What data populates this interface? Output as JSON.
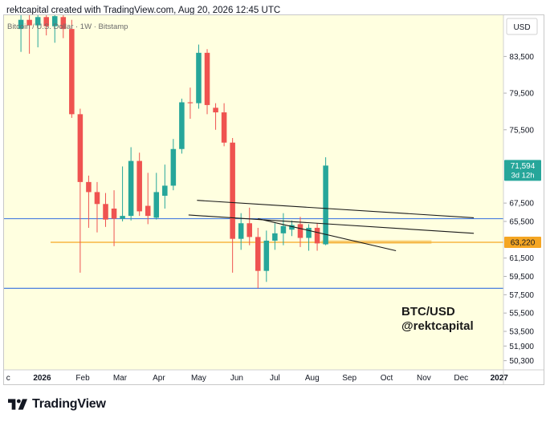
{
  "header": {
    "text": "rektcapital created with TradingView.com, Aug 20, 2026 12:45 UTC"
  },
  "legend": {
    "text": "Bitcoin / U.S. Dollar · 1W · Bitstamp"
  },
  "watermark": {
    "line1": "BTC/USD",
    "line2": "@rektcapital"
  },
  "footer": {
    "brand": "TradingView",
    "logo_icon": "tradingview-logo-icon"
  },
  "colors": {
    "background": "#ffffe0",
    "bull": "#26a69a",
    "bear": "#ef5350",
    "blue_line": "#4a7fe0",
    "orange_line": "#f5a623",
    "orange_zone": "#f7d27a",
    "trendline": "#1a1a1a",
    "price_badge_bull": "#26a69a",
    "price_badge_orange": "#f5a623"
  },
  "chart_data": {
    "type": "candlestick",
    "title": "Bitcoin / U.S. Dollar · 1W · Bitstamp",
    "currency_label": "USD",
    "y_ticks": [
      "83,500",
      "79,500",
      "75,500",
      "67,500",
      "65,500",
      "61,500",
      "59,500",
      "57,500",
      "55,500",
      "53,500",
      "51,900",
      "50,300"
    ],
    "y_tick_values": [
      83500,
      79500,
      75500,
      67500,
      65500,
      61500,
      59500,
      57500,
      55500,
      53500,
      51900,
      50300
    ],
    "ylim": [
      49300,
      88000
    ],
    "x_ticks": [
      "c",
      "2026",
      "Feb",
      "Mar",
      "Apr",
      "May",
      "Jun",
      "Jul",
      "Aug",
      "Sep",
      "Oct",
      "Nov",
      "Dec",
      "2027"
    ],
    "x_tick_weeks": [
      -1.5,
      2.5,
      7.3,
      11.7,
      16.3,
      21.0,
      25.5,
      30.0,
      34.4,
      38.8,
      43.2,
      47.6,
      52.0,
      56.5
    ],
    "xlim": [
      -2,
      57
    ],
    "price_labels": [
      {
        "value": 71594,
        "text": "71,594",
        "sub": "3d 12h",
        "kind": "bull"
      },
      {
        "value": 63220,
        "text": "63,220",
        "sub": "",
        "kind": "orange"
      }
    ],
    "horizontal_lines": [
      {
        "y": 65800,
        "kind": "blue",
        "x0": -2,
        "x1": 57
      },
      {
        "y": 58200,
        "kind": "blue",
        "x0": -2,
        "x1": 57
      },
      {
        "y": 63220,
        "kind": "orange",
        "x0": 3.5,
        "x1": 57
      }
    ],
    "orange_zone": {
      "x0": 35.5,
      "x1": 48.5,
      "y0": 63050,
      "y1": 63450
    },
    "trendlines": [
      {
        "x0": 20.8,
        "y0": 67800,
        "x1": 53.5,
        "y1": 65900
      },
      {
        "x0": 19.8,
        "y0": 66200,
        "x1": 53.5,
        "y1": 64200
      },
      {
        "x0": 28.0,
        "y0": 65800,
        "x1": 44.3,
        "y1": 62300
      }
    ],
    "candles": [
      {
        "w": 0,
        "o": 86500,
        "h": 88000,
        "l": 84000,
        "c": 87500
      },
      {
        "w": 1,
        "o": 87500,
        "h": 88000,
        "l": 83800,
        "c": 86900
      },
      {
        "w": 2,
        "o": 86900,
        "h": 88000,
        "l": 84500,
        "c": 87800
      },
      {
        "w": 3,
        "o": 87800,
        "h": 88000,
        "l": 85800,
        "c": 86800
      },
      {
        "w": 4,
        "o": 86800,
        "h": 88000,
        "l": 85000,
        "c": 87900
      },
      {
        "w": 5,
        "o": 87800,
        "h": 88000,
        "l": 85500,
        "c": 86500
      },
      {
        "w": 6,
        "o": 86500,
        "h": 87500,
        "l": 76800,
        "c": 77200
      },
      {
        "w": 7,
        "o": 77200,
        "h": 77800,
        "l": 59900,
        "c": 69800
      },
      {
        "w": 8,
        "o": 69800,
        "h": 70500,
        "l": 64800,
        "c": 68700
      },
      {
        "w": 9,
        "o": 68700,
        "h": 69800,
        "l": 64300,
        "c": 67400
      },
      {
        "w": 10,
        "o": 67400,
        "h": 68600,
        "l": 64900,
        "c": 65700
      },
      {
        "w": 11,
        "o": 66900,
        "h": 68900,
        "l": 62800,
        "c": 65800
      },
      {
        "w": 12,
        "o": 65800,
        "h": 71500,
        "l": 65500,
        "c": 66100
      },
      {
        "w": 13,
        "o": 66100,
        "h": 73600,
        "l": 65600,
        "c": 72100
      },
      {
        "w": 14,
        "o": 72100,
        "h": 73000,
        "l": 66100,
        "c": 66600
      },
      {
        "w": 15,
        "o": 67200,
        "h": 70800,
        "l": 65200,
        "c": 66100
      },
      {
        "w": 16,
        "o": 65900,
        "h": 70800,
        "l": 65700,
        "c": 68700
      },
      {
        "w": 17,
        "o": 68300,
        "h": 71700,
        "l": 66900,
        "c": 69400
      },
      {
        "w": 18,
        "o": 69400,
        "h": 74500,
        "l": 68900,
        "c": 73400
      },
      {
        "w": 19,
        "o": 73400,
        "h": 78900,
        "l": 72900,
        "c": 78500
      },
      {
        "w": 20,
        "o": 78500,
        "h": 80100,
        "l": 76700,
        "c": 78400
      },
      {
        "w": 21,
        "o": 78400,
        "h": 84800,
        "l": 77800,
        "c": 83900
      },
      {
        "w": 22,
        "o": 83900,
        "h": 84300,
        "l": 77200,
        "c": 78200
      },
      {
        "w": 23,
        "o": 77900,
        "h": 78400,
        "l": 75500,
        "c": 77400
      },
      {
        "w": 24,
        "o": 77400,
        "h": 78400,
        "l": 73700,
        "c": 74100
      },
      {
        "w": 25,
        "o": 74100,
        "h": 74600,
        "l": 59900,
        "c": 63600
      },
      {
        "w": 26,
        "o": 63600,
        "h": 66400,
        "l": 62400,
        "c": 65300
      },
      {
        "w": 27,
        "o": 65300,
        "h": 67000,
        "l": 62900,
        "c": 63800
      },
      {
        "w": 28,
        "o": 63800,
        "h": 64800,
        "l": 58200,
        "c": 60100
      },
      {
        "w": 29,
        "o": 60100,
        "h": 64500,
        "l": 58900,
        "c": 63400
      },
      {
        "w": 30,
        "o": 63400,
        "h": 65300,
        "l": 62400,
        "c": 64200
      },
      {
        "w": 31,
        "o": 64200,
        "h": 66400,
        "l": 62900,
        "c": 65000
      },
      {
        "w": 32,
        "o": 64600,
        "h": 65600,
        "l": 63900,
        "c": 65100
      },
      {
        "w": 33,
        "o": 65200,
        "h": 66000,
        "l": 62700,
        "c": 63700
      },
      {
        "w": 34,
        "o": 63700,
        "h": 65200,
        "l": 62300,
        "c": 64800
      },
      {
        "w": 35,
        "o": 64800,
        "h": 65300,
        "l": 62300,
        "c": 63100
      },
      {
        "w": 36,
        "o": 63000,
        "h": 72500,
        "l": 62900,
        "c": 71594
      }
    ]
  }
}
